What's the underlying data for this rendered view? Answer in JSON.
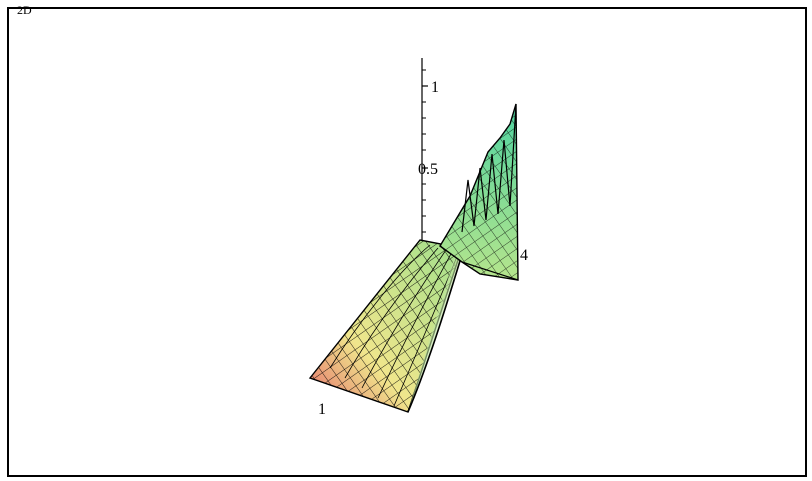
{
  "corner_label": "2D",
  "chart_data": {
    "type": "surface",
    "title": "",
    "z_axis_ticks": [
      "1",
      "0.5"
    ],
    "axis_end_labels": [
      "1",
      "4"
    ],
    "colormap": [
      "#e46a6a",
      "#f0e68c",
      "#8ee08a",
      "#4fd3a0"
    ],
    "mesh_color": "#000000",
    "grid": false,
    "surface_description_present": true
  }
}
